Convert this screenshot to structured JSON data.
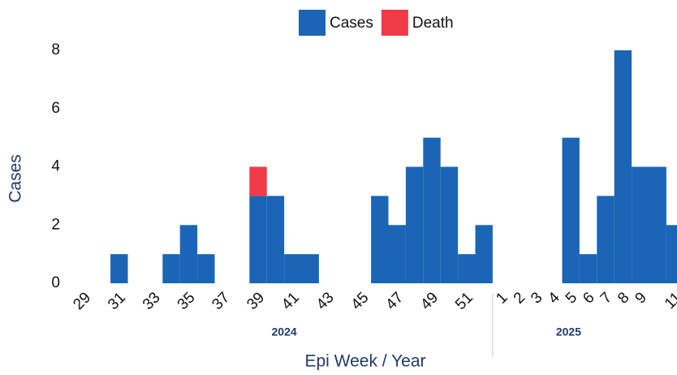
{
  "chart_data": {
    "type": "stacked_bar",
    "x_label": "Epi Week / Year",
    "y_label": "Cases",
    "categories": [
      "29",
      null,
      "31",
      null,
      "33",
      null,
      "35",
      null,
      "37",
      null,
      "39",
      null,
      "41",
      null,
      "43",
      null,
      "45",
      null,
      "47",
      null,
      "49",
      null,
      "51",
      null,
      "1",
      "2",
      "3",
      "4",
      "5",
      "6",
      "7",
      "8",
      "9",
      null,
      "11"
    ],
    "year_groups": [
      {
        "label": "2024",
        "count": 24
      },
      {
        "label": "2025",
        "count": 11
      }
    ],
    "series": [
      {
        "name": "Cases",
        "color": "#1a65b5",
        "values": [
          0,
          0,
          1,
          0,
          0,
          1,
          2,
          1,
          0,
          0,
          3,
          3,
          1,
          1,
          0,
          0,
          0,
          3,
          2,
          4,
          5,
          4,
          1,
          2,
          0,
          0,
          0,
          0,
          5,
          1,
          3,
          8,
          4,
          4,
          2
        ]
      },
      {
        "name": "Death",
        "color": "#f03a47",
        "values": [
          0,
          0,
          0,
          0,
          0,
          0,
          0,
          0,
          0,
          0,
          1,
          0,
          0,
          0,
          0,
          0,
          0,
          0,
          0,
          0,
          0,
          0,
          0,
          0,
          0,
          0,
          0,
          0,
          0,
          0,
          0,
          0,
          0,
          0,
          0
        ]
      }
    ],
    "ylim": [
      0,
      8
    ],
    "yticks": [
      0,
      2,
      4,
      6,
      8
    ],
    "grid": false,
    "legend": "top"
  }
}
